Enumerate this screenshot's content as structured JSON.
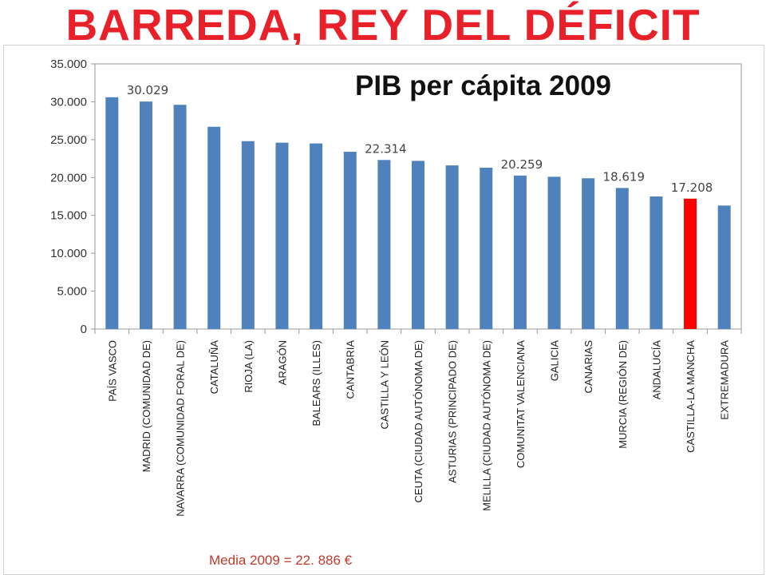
{
  "slide_title": "BARREDA, REY DEL DÉFICIT",
  "footnote": "Media 2009 = 22. 886 €",
  "colors": {
    "bar": "#4f81bd",
    "highlight": "#ff0000",
    "title": "#e8202a"
  },
  "chart_data": {
    "type": "bar",
    "title": "PIB per cápita 2009",
    "xlabel": "",
    "ylabel": "",
    "ylim": [
      0,
      35000
    ],
    "yticks": [
      0,
      5000,
      10000,
      15000,
      20000,
      25000,
      30000,
      35000
    ],
    "ytick_labels": [
      "0",
      "5.000",
      "10.000",
      "15.000",
      "20.000",
      "25.000",
      "30.000",
      "35.000"
    ],
    "grid": false,
    "highlight_category": "CASTILLA-LA MANCHA",
    "categories": [
      "PAÍS VASCO",
      "MADRID (COMUNIDAD DE)",
      "NAVARRA (COMUNIDAD FORAL DE)",
      "CATALUÑA",
      "RIOJA (LA)",
      "ARAGÓN",
      "BALEARS (ILLES)",
      "CANTABRIA",
      "CASTILLA Y LEÓN",
      "CEUTA (CIUDAD AUTÓNOMA DE)",
      "ASTURIAS (PRINCIPADO DE)",
      "MELILLA (CIUDAD AUTÓNOMA DE)",
      "COMUNITAT VALENCIANA",
      "GALICIA",
      "CANARIAS",
      "MURCIA (REGIÓN DE)",
      "ANDALUCÍA",
      "CASTILLA-LA MANCHA",
      "EXTREMADURA"
    ],
    "values": [
      30600,
      30029,
      29600,
      26700,
      24800,
      24600,
      24500,
      23400,
      22314,
      22200,
      21600,
      21300,
      20259,
      20100,
      19900,
      18619,
      17500,
      17208,
      16300
    ],
    "data_labels": [
      {
        "category": "MADRID (COMUNIDAD DE)",
        "text": "30.029"
      },
      {
        "category": "CASTILLA Y LEÓN",
        "text": "22.314"
      },
      {
        "category": "COMUNITAT VALENCIANA",
        "text": "20.259"
      },
      {
        "category": "MURCIA (REGIÓN DE)",
        "text": "18.619"
      },
      {
        "category": "CASTILLA-LA MANCHA",
        "text": "17.208"
      }
    ]
  }
}
